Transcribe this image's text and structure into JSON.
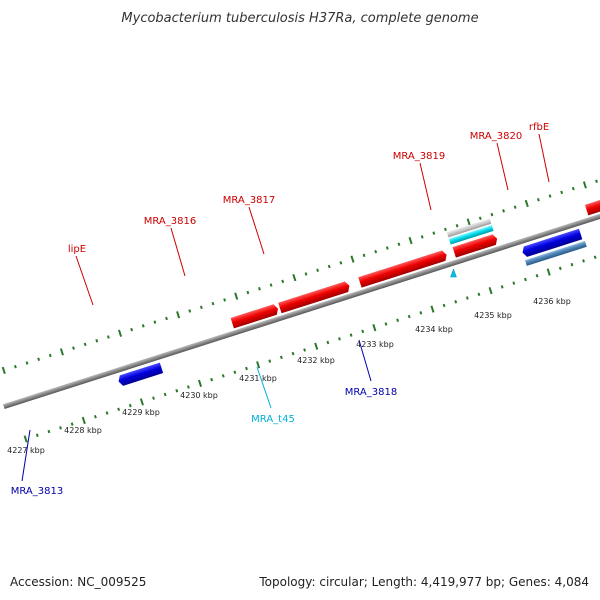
{
  "title": "Mycobacterium tuberculosis H37Ra, complete genome",
  "footer": {
    "accession": "Accession: NC_009525",
    "summary": "Topology: circular; Length: 4,419,977 bp; Genes: 4,084"
  },
  "colors": {
    "forward_gene": "#ee0000",
    "reverse_gene": "#0000dd",
    "rna": "#00c8d8",
    "gray_feature": "#c8c8c8",
    "steel_feature": "#4a7fb0",
    "olive_feature": "#6b8e23",
    "backbone": "#888888",
    "tick": "#2a7a2a",
    "red_label": "#cc0000",
    "blue_label": "#0000aa",
    "cyan_label": "#00b0d8"
  },
  "icons": {
    "trna_marker": "triangle-marker-icon"
  },
  "scale_labels": [
    "4227 kbp",
    "4228 kbp",
    "4229 kbp",
    "4230 kbp",
    "4231 kbp",
    "4232 kbp",
    "4233 kbp",
    "4234 kbp",
    "4235 kbp",
    "4236 kbp"
  ],
  "gene_labels": {
    "lipE": "lipE",
    "MRA_3816": "MRA_3816",
    "MRA_3817": "MRA_3817",
    "MRA_3819": "MRA_3819",
    "MRA_3820": "MRA_3820",
    "rfbE": "rfbE",
    "MRA_3813": "MRA_3813",
    "MRA_3818": "MRA_3818",
    "MRA_t45": "MRA_t45"
  }
}
